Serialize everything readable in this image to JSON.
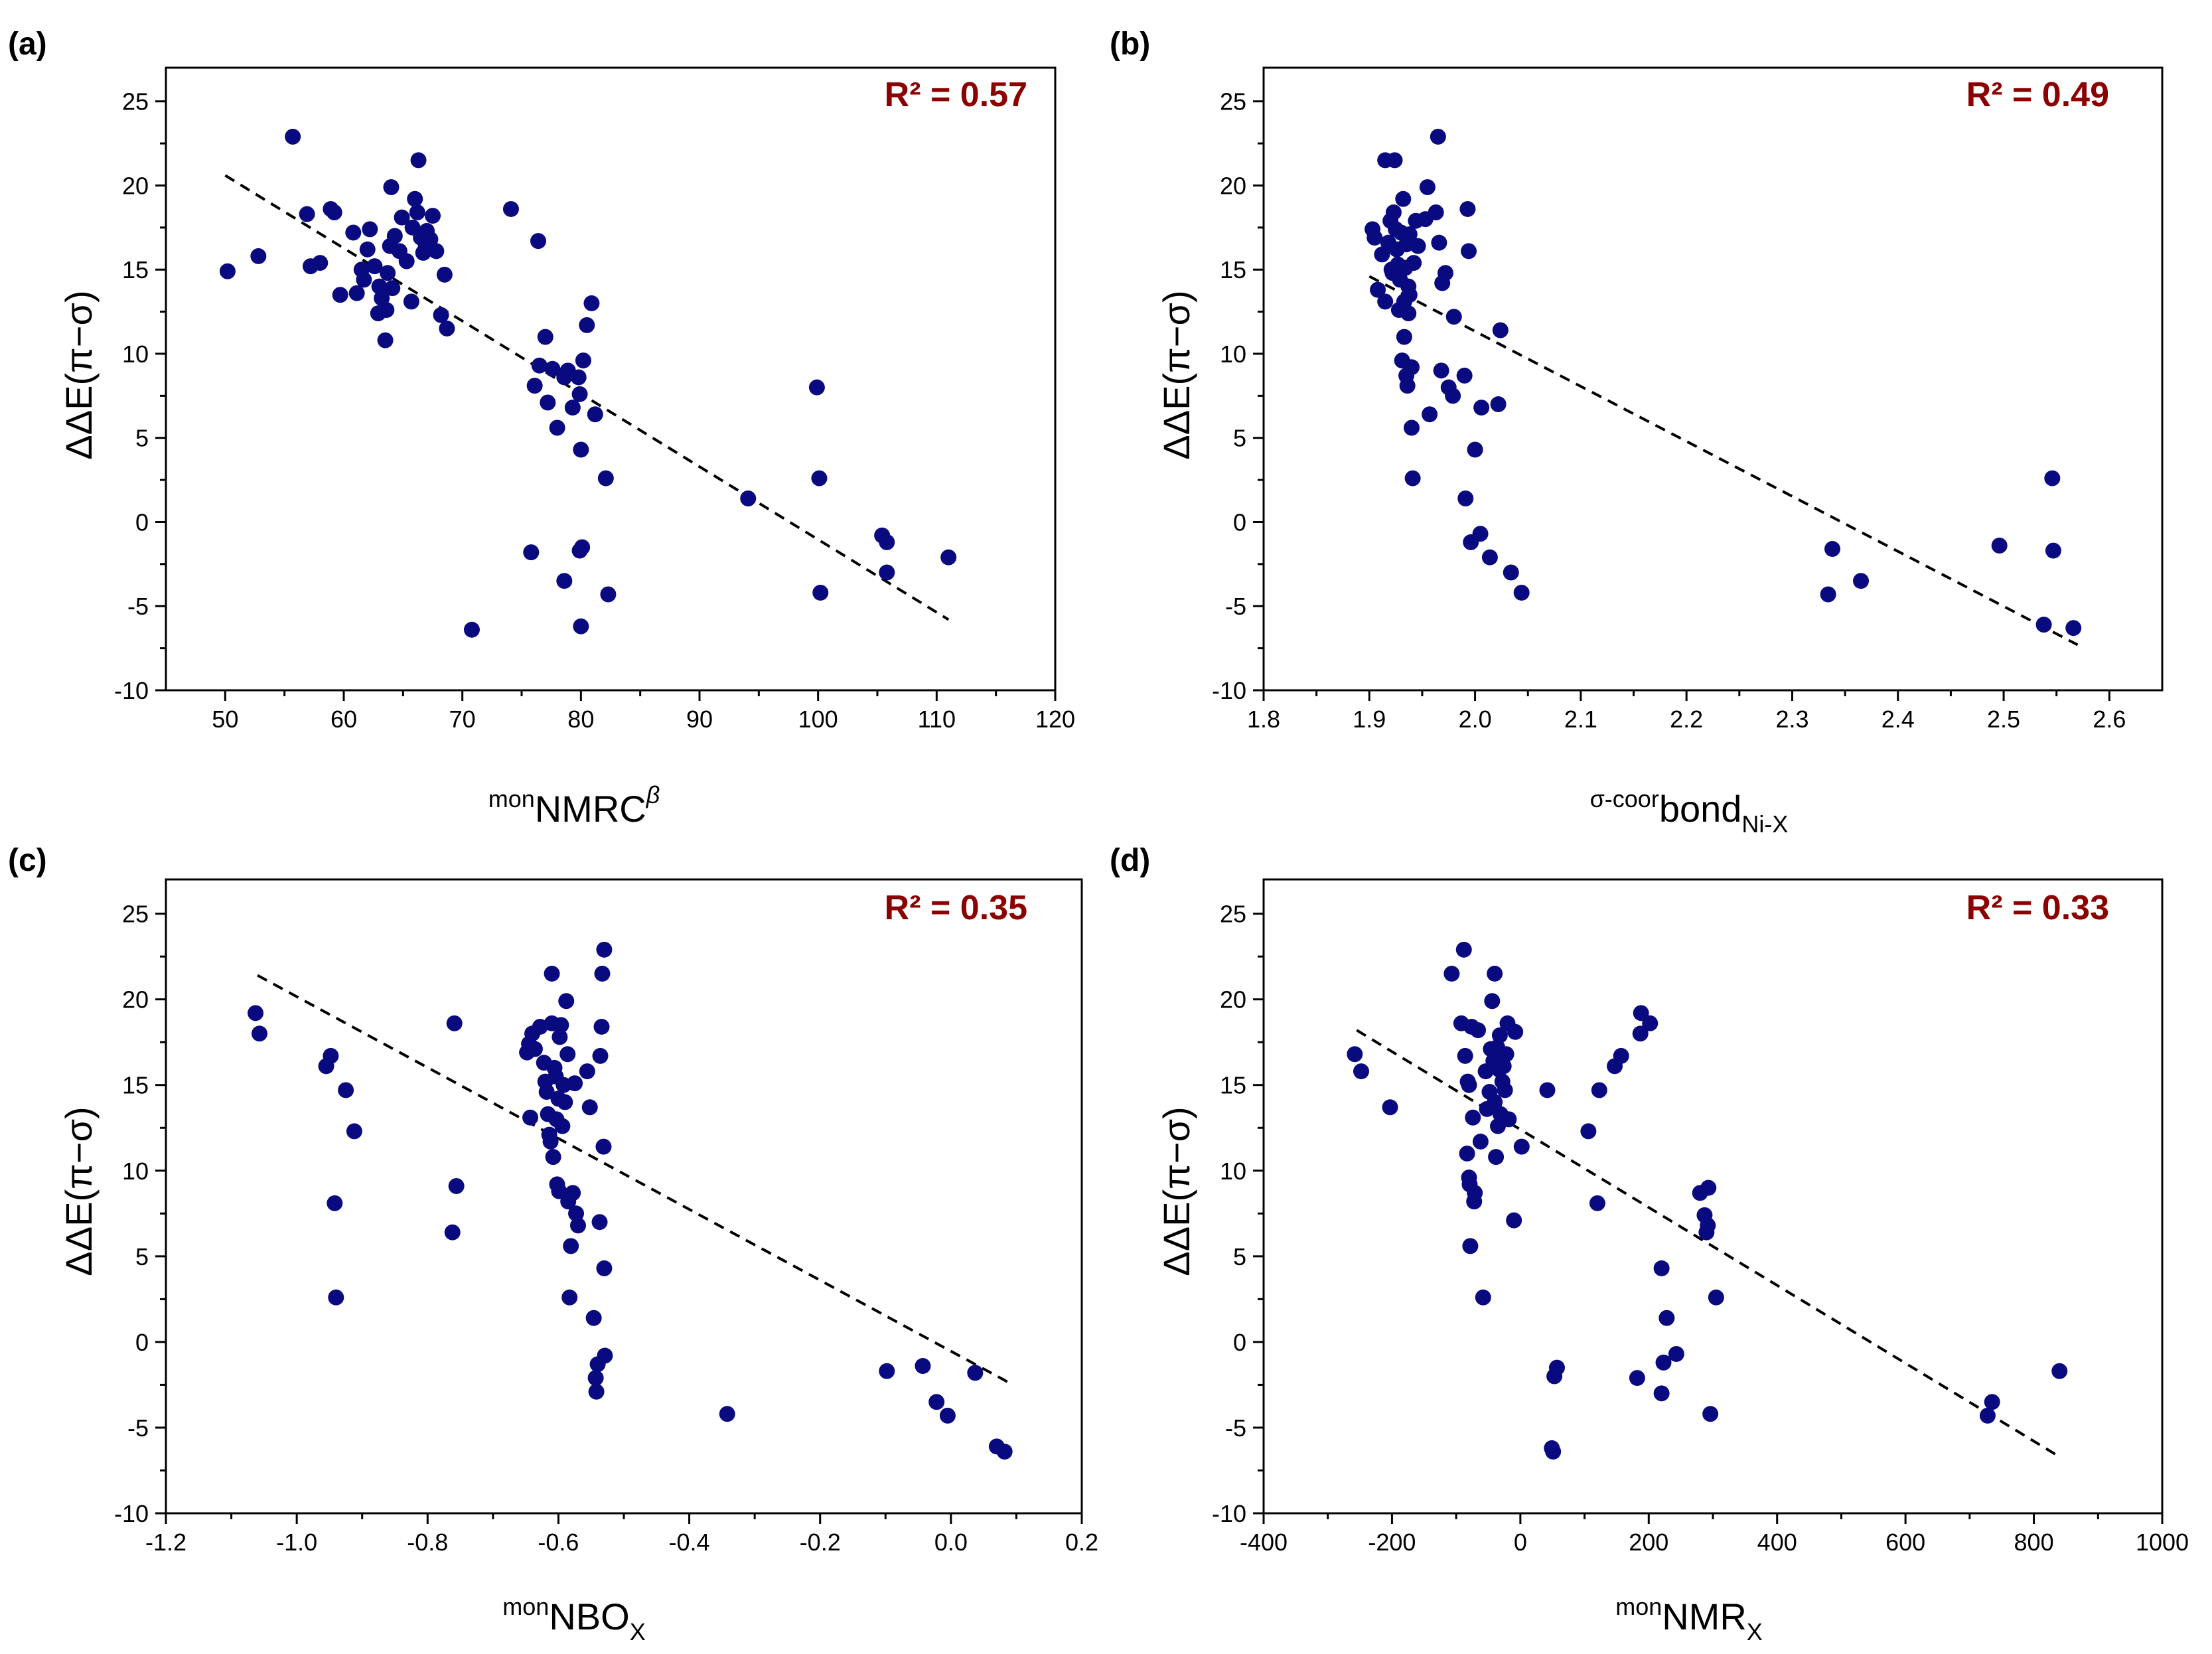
{
  "colors": {
    "point": "#0a0a80",
    "r2": "#8b0000",
    "axis": "#000000",
    "fit": "#000000"
  },
  "chart_data": [
    {
      "type": "scatter",
      "panel_label": "(a)",
      "r2_text": "R² = 0.57",
      "ylabel": "ΔΔE(π−σ)",
      "xlabel": {
        "prefix": "mon",
        "main": "NMRC",
        "sup": "β",
        "sub": ""
      },
      "xlim": [
        45,
        120
      ],
      "xticks": [
        50,
        60,
        70,
        80,
        90,
        100,
        110,
        120
      ],
      "xtick_labels": [
        "50",
        "60",
        "70",
        "80",
        "90",
        "100",
        "110",
        "120"
      ],
      "ylim": [
        -10,
        27
      ],
      "yticks": [
        -10,
        -5,
        0,
        5,
        10,
        15,
        20,
        25
      ],
      "ytick_labels": [
        "-10",
        "-5",
        "0",
        "5",
        "10",
        "15",
        "20",
        "25"
      ],
      "fit_line": {
        "x": [
          50,
          111
        ],
        "y": [
          20.6,
          -5.8
        ]
      },
      "points": [
        [
          50.2,
          14.9
        ],
        [
          52.8,
          15.8
        ],
        [
          55.7,
          22.9
        ],
        [
          56.9,
          18.3
        ],
        [
          57.2,
          15.2
        ],
        [
          58.0,
          15.4
        ],
        [
          58.9,
          18.6
        ],
        [
          59.2,
          18.4
        ],
        [
          59.7,
          13.5
        ],
        [
          60.8,
          17.2
        ],
        [
          61.1,
          13.6
        ],
        [
          61.5,
          15.0
        ],
        [
          61.7,
          14.4
        ],
        [
          62.0,
          16.2
        ],
        [
          62.2,
          17.4
        ],
        [
          62.6,
          15.2
        ],
        [
          62.9,
          12.4
        ],
        [
          63.0,
          14.0
        ],
        [
          63.2,
          13.3
        ],
        [
          63.5,
          10.8
        ],
        [
          63.6,
          12.6
        ],
        [
          63.7,
          14.8
        ],
        [
          63.9,
          16.4
        ],
        [
          64.1,
          13.9
        ],
        [
          64.0,
          19.9
        ],
        [
          64.3,
          17.0
        ],
        [
          64.7,
          16.1
        ],
        [
          64.9,
          18.1
        ],
        [
          65.3,
          15.5
        ],
        [
          65.7,
          13.1
        ],
        [
          65.8,
          17.5
        ],
        [
          66.0,
          19.2
        ],
        [
          66.2,
          18.4
        ],
        [
          66.3,
          21.5
        ],
        [
          66.5,
          16.9
        ],
        [
          66.7,
          16.0
        ],
        [
          66.9,
          16.3
        ],
        [
          67.0,
          17.3
        ],
        [
          67.3,
          16.8
        ],
        [
          67.5,
          18.2
        ],
        [
          67.8,
          16.1
        ],
        [
          68.2,
          12.3
        ],
        [
          68.5,
          14.7
        ],
        [
          68.7,
          11.5
        ],
        [
          74.1,
          18.6
        ],
        [
          76.4,
          16.7
        ],
        [
          75.8,
          -1.8
        ],
        [
          76.1,
          8.1
        ],
        [
          76.5,
          9.3
        ],
        [
          77.0,
          11.0
        ],
        [
          77.2,
          7.1
        ],
        [
          77.6,
          9.1
        ],
        [
          78.0,
          5.6
        ],
        [
          78.6,
          8.6
        ],
        [
          78.9,
          9.0
        ],
        [
          78.6,
          -3.5
        ],
        [
          79.3,
          6.8
        ],
        [
          79.8,
          8.6
        ],
        [
          79.9,
          7.6
        ],
        [
          80.2,
          9.6
        ],
        [
          80.0,
          4.3
        ],
        [
          80.5,
          11.7
        ],
        [
          79.9,
          -1.7
        ],
        [
          80.1,
          -1.5
        ],
        [
          80.0,
          -6.2
        ],
        [
          80.9,
          13.0
        ],
        [
          81.2,
          6.4
        ],
        [
          82.1,
          2.6
        ],
        [
          82.3,
          -4.3
        ],
        [
          70.8,
          -6.4
        ],
        [
          94.1,
          1.4
        ],
        [
          99.9,
          8.0
        ],
        [
          100.1,
          2.6
        ],
        [
          100.2,
          -4.2
        ],
        [
          105.4,
          -0.8
        ],
        [
          105.8,
          -1.2
        ],
        [
          105.8,
          -3.0
        ],
        [
          111.0,
          -2.1
        ]
      ]
    },
    {
      "type": "scatter",
      "panel_label": "(b)",
      "r2_text": "R² = 0.49",
      "ylabel": "ΔΔE(π−σ)",
      "xlabel": {
        "prefix": "σ-coor",
        "main": "bond",
        "sup": "",
        "sub": "Ni-X"
      },
      "xlim": [
        1.8,
        2.65
      ],
      "xticks": [
        1.8,
        1.9,
        2.0,
        2.1,
        2.2,
        2.3,
        2.4,
        2.5,
        2.6
      ],
      "xtick_labels": [
        "1.8",
        "1.9",
        "2.0",
        "2.1",
        "2.2",
        "2.3",
        "2.4",
        "2.5",
        "2.6"
      ],
      "ylim": [
        -10,
        27
      ],
      "yticks": [
        -10,
        -5,
        0,
        5,
        10,
        15,
        20,
        25
      ],
      "ytick_labels": [
        "-10",
        "-5",
        "0",
        "5",
        "10",
        "15",
        "20",
        "25"
      ],
      "fit_line": {
        "x": [
          1.9,
          2.57
        ],
        "y": [
          14.6,
          -7.3
        ]
      },
      "points": [
        [
          1.903,
          17.4
        ],
        [
          1.905,
          16.9
        ],
        [
          1.908,
          13.8
        ],
        [
          1.912,
          15.9
        ],
        [
          1.915,
          21.5
        ],
        [
          1.915,
          13.1
        ],
        [
          1.918,
          16.6
        ],
        [
          1.92,
          17.9
        ],
        [
          1.921,
          15.0
        ],
        [
          1.922,
          14.8
        ],
        [
          1.923,
          18.4
        ],
        [
          1.924,
          21.5
        ],
        [
          1.925,
          17.4
        ],
        [
          1.926,
          16.2
        ],
        [
          1.927,
          15.3
        ],
        [
          1.928,
          12.6
        ],
        [
          1.929,
          14.4
        ],
        [
          1.93,
          17.2
        ],
        [
          1.931,
          9.6
        ],
        [
          1.932,
          19.2
        ],
        [
          1.933,
          13.1
        ],
        [
          1.933,
          11.0
        ],
        [
          1.934,
          15.1
        ],
        [
          1.935,
          16.5
        ],
        [
          1.935,
          8.7
        ],
        [
          1.936,
          8.1
        ],
        [
          1.937,
          12.4
        ],
        [
          1.937,
          14.0
        ],
        [
          1.938,
          13.5
        ],
        [
          1.938,
          17.1
        ],
        [
          1.94,
          9.2
        ],
        [
          1.94,
          5.6
        ],
        [
          1.941,
          2.6
        ],
        [
          1.942,
          15.4
        ],
        [
          1.944,
          17.9
        ],
        [
          1.946,
          16.4
        ],
        [
          1.953,
          18.0
        ],
        [
          1.955,
          19.9
        ],
        [
          1.957,
          6.4
        ],
        [
          1.963,
          18.4
        ],
        [
          1.965,
          22.9
        ],
        [
          1.966,
          16.6
        ],
        [
          1.968,
          9.0
        ],
        [
          1.969,
          14.2
        ],
        [
          1.972,
          14.8
        ],
        [
          1.975,
          8.0
        ],
        [
          1.979,
          7.5
        ],
        [
          1.98,
          12.2
        ],
        [
          1.99,
          8.7
        ],
        [
          1.991,
          1.4
        ],
        [
          1.993,
          18.6
        ],
        [
          1.994,
          16.1
        ],
        [
          1.996,
          -1.2
        ],
        [
          2.0,
          4.3
        ],
        [
          2.005,
          -0.7
        ],
        [
          2.006,
          6.8
        ],
        [
          2.014,
          -2.1
        ],
        [
          2.022,
          7.0
        ],
        [
          2.024,
          11.4
        ],
        [
          2.034,
          -3.0
        ],
        [
          2.044,
          -4.2
        ],
        [
          2.334,
          -4.3
        ],
        [
          2.338,
          -1.6
        ],
        [
          2.365,
          -3.5
        ],
        [
          2.496,
          -1.4
        ],
        [
          2.538,
          -6.1
        ],
        [
          2.546,
          2.6
        ],
        [
          2.547,
          -1.7
        ],
        [
          2.566,
          -6.3
        ]
      ]
    },
    {
      "type": "scatter",
      "panel_label": "(c)",
      "r2_text": "R² = 0.35",
      "ylabel": "ΔΔE(π−σ)",
      "xlabel": {
        "prefix": "mon",
        "main": "NBO",
        "sup": "",
        "sub": "X"
      },
      "xlim": [
        -1.2,
        0.2
      ],
      "xticks": [
        -1.2,
        -1.0,
        -0.8,
        -0.6,
        -0.4,
        -0.2,
        0.0,
        0.2
      ],
      "xtick_labels": [
        "-1.2",
        "-1.0",
        "-0.8",
        "-0.6",
        "-0.4",
        "-0.2",
        "0.0",
        "0.2"
      ],
      "ylim": [
        -10,
        27
      ],
      "yticks": [
        -10,
        -5,
        0,
        5,
        10,
        15,
        20,
        25
      ],
      "ytick_labels": [
        "-10",
        "-5",
        "0",
        "5",
        "10",
        "15",
        "20",
        "25"
      ],
      "fit_line": {
        "x": [
          -1.06,
          0.09
        ],
        "y": [
          21.4,
          -2.4
        ]
      },
      "points": [
        [
          -1.063,
          19.2
        ],
        [
          -1.057,
          18.0
        ],
        [
          -0.955,
          16.1
        ],
        [
          -0.948,
          16.7
        ],
        [
          -0.942,
          8.1
        ],
        [
          -0.94,
          2.6
        ],
        [
          -0.925,
          14.7
        ],
        [
          -0.912,
          12.3
        ],
        [
          -0.759,
          18.6
        ],
        [
          -0.756,
          9.1
        ],
        [
          -0.762,
          6.4
        ],
        [
          -0.643,
          13.1
        ],
        [
          -0.648,
          16.9
        ],
        [
          -0.645,
          17.4
        ],
        [
          -0.64,
          18.0
        ],
        [
          -0.636,
          17.1
        ],
        [
          -0.628,
          18.4
        ],
        [
          -0.622,
          16.3
        ],
        [
          -0.62,
          15.2
        ],
        [
          -0.618,
          14.6
        ],
        [
          -0.616,
          13.3
        ],
        [
          -0.614,
          12.1
        ],
        [
          -0.612,
          11.7
        ],
        [
          -0.61,
          18.6
        ],
        [
          -0.61,
          21.5
        ],
        [
          -0.608,
          10.8
        ],
        [
          -0.606,
          16.0
        ],
        [
          -0.604,
          15.5
        ],
        [
          -0.603,
          13.0
        ],
        [
          -0.602,
          9.2
        ],
        [
          -0.6,
          14.2
        ],
        [
          -0.599,
          8.8
        ],
        [
          -0.598,
          17.8
        ],
        [
          -0.596,
          18.5
        ],
        [
          -0.594,
          12.6
        ],
        [
          -0.592,
          15.0
        ],
        [
          -0.59,
          14.0
        ],
        [
          -0.588,
          19.9
        ],
        [
          -0.586,
          16.8
        ],
        [
          -0.585,
          8.2
        ],
        [
          -0.583,
          2.6
        ],
        [
          -0.581,
          5.6
        ],
        [
          -0.578,
          8.7
        ],
        [
          -0.575,
          15.1
        ],
        [
          -0.573,
          7.5
        ],
        [
          -0.57,
          6.8
        ],
        [
          -0.556,
          15.8
        ],
        [
          -0.552,
          13.7
        ],
        [
          -0.546,
          1.4
        ],
        [
          -0.543,
          -2.1
        ],
        [
          -0.542,
          -2.9
        ],
        [
          -0.54,
          -1.3
        ],
        [
          -0.537,
          7.0
        ],
        [
          -0.536,
          16.7
        ],
        [
          -0.534,
          18.4
        ],
        [
          -0.533,
          21.5
        ],
        [
          -0.531,
          11.4
        ],
        [
          -0.53,
          4.3
        ],
        [
          -0.529,
          -0.8
        ],
        [
          -0.53,
          22.9
        ],
        [
          -0.342,
          -4.2
        ],
        [
          -0.098,
          -1.7
        ],
        [
          -0.043,
          -1.4
        ],
        [
          -0.022,
          -3.5
        ],
        [
          -0.005,
          -4.3
        ],
        [
          0.037,
          -1.8
        ],
        [
          0.07,
          -6.1
        ],
        [
          0.082,
          -6.4
        ]
      ]
    },
    {
      "type": "scatter",
      "panel_label": "(d)",
      "r2_text": "R² = 0.33",
      "ylabel": "ΔΔE(π−σ)",
      "xlabel": {
        "prefix": "mon",
        "main": "NMR",
        "sup": "",
        "sub": "X"
      },
      "xlim": [
        -400,
        1000
      ],
      "xticks": [
        -400,
        -200,
        0,
        200,
        400,
        600,
        800,
        1000
      ],
      "xtick_labels": [
        "-400",
        "-200",
        "0",
        "200",
        "400",
        "600",
        "800",
        "1000"
      ],
      "ylim": [
        -10,
        27
      ],
      "yticks": [
        -10,
        -5,
        0,
        5,
        10,
        15,
        20,
        25
      ],
      "ytick_labels": [
        "-10",
        "-5",
        "0",
        "5",
        "10",
        "15",
        "20",
        "25"
      ],
      "fit_line": {
        "x": [
          -255,
          840
        ],
        "y": [
          18.2,
          -6.7
        ]
      },
      "points": [
        [
          -258,
          16.8
        ],
        [
          -248,
          15.8
        ],
        [
          -203,
          13.7
        ],
        [
          -107,
          21.5
        ],
        [
          -92,
          18.6
        ],
        [
          -88,
          22.9
        ],
        [
          -86,
          16.7
        ],
        [
          -83,
          11.0
        ],
        [
          -82,
          15.2
        ],
        [
          -80,
          15.0
        ],
        [
          -80,
          9.6
        ],
        [
          -79,
          9.2
        ],
        [
          -78,
          5.6
        ],
        [
          -76,
          18.4
        ],
        [
          -74,
          13.1
        ],
        [
          -72,
          8.2
        ],
        [
          -71,
          8.7
        ],
        [
          -66,
          18.2
        ],
        [
          -62,
          11.7
        ],
        [
          -58,
          2.6
        ],
        [
          -54,
          15.8
        ],
        [
          -52,
          13.6
        ],
        [
          -48,
          14.6
        ],
        [
          -46,
          17.1
        ],
        [
          -44,
          19.9
        ],
        [
          -42,
          16.4
        ],
        [
          -40,
          14.0
        ],
        [
          -40,
          21.5
        ],
        [
          -38,
          10.8
        ],
        [
          -36,
          17.2
        ],
        [
          -35,
          12.6
        ],
        [
          -33,
          15.9
        ],
        [
          -32,
          17.9
        ],
        [
          -31,
          13.3
        ],
        [
          -28,
          15.2
        ],
        [
          -26,
          16.1
        ],
        [
          -24,
          14.7
        ],
        [
          -22,
          16.8
        ],
        [
          -20,
          18.6
        ],
        [
          -18,
          13.0
        ],
        [
          -8,
          18.1
        ],
        [
          -10,
          7.1
        ],
        [
          2,
          11.4
        ],
        [
          42,
          14.7
        ],
        [
          49,
          -6.2
        ],
        [
          51,
          -6.4
        ],
        [
          53,
          -2.0
        ],
        [
          57,
          -1.5
        ],
        [
          106,
          12.3
        ],
        [
          120,
          8.1
        ],
        [
          123,
          14.7
        ],
        [
          147,
          16.1
        ],
        [
          157,
          16.7
        ],
        [
          182,
          -2.1
        ],
        [
          187,
          18.0
        ],
        [
          188,
          19.2
        ],
        [
          202,
          18.6
        ],
        [
          220,
          -3.0
        ],
        [
          223,
          -1.2
        ],
        [
          220,
          4.3
        ],
        [
          228,
          1.4
        ],
        [
          243,
          -0.7
        ],
        [
          280,
          8.7
        ],
        [
          287,
          7.4
        ],
        [
          290,
          6.4
        ],
        [
          292,
          6.8
        ],
        [
          293,
          9.0
        ],
        [
          296,
          -4.2
        ],
        [
          305,
          2.6
        ],
        [
          728,
          -4.3
        ],
        [
          735,
          -3.5
        ],
        [
          840,
          -1.7
        ]
      ]
    }
  ]
}
